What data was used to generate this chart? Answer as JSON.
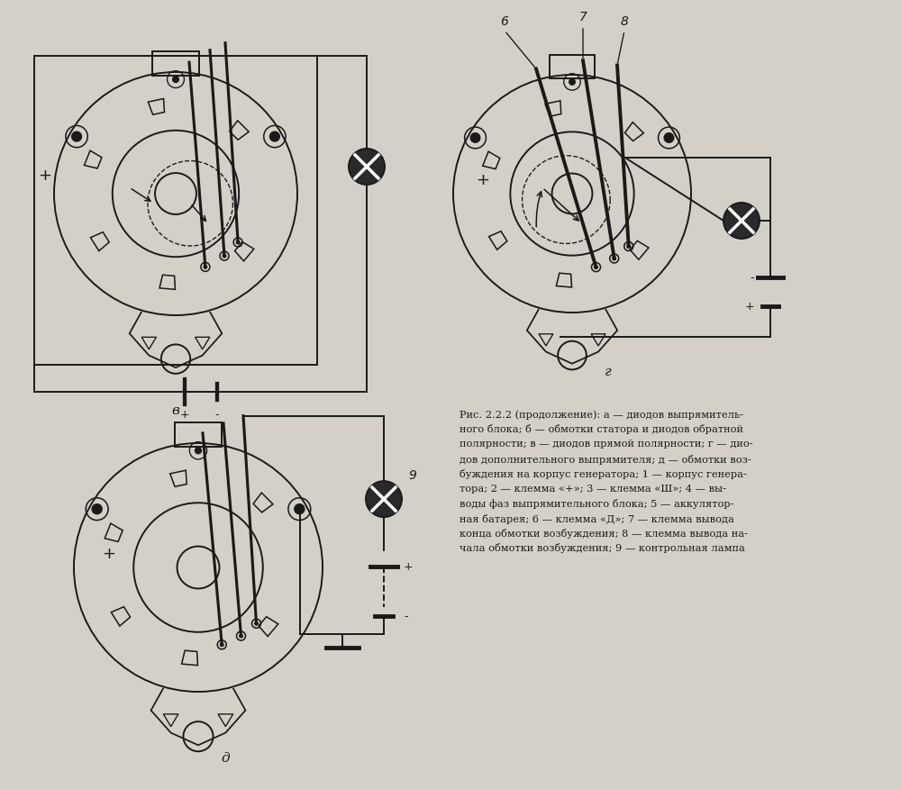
{
  "bg_color": "#d4d0c8",
  "line_color": "#1a1a1a",
  "label_v": "в",
  "label_g": "г",
  "label_d": "д",
  "caption_lines": [
    "Рис. 2.2.2 (продолжение): а — диодов выпрямитель-",
    "ного блока; б — обмотки статора и диодов обратной",
    "полярности; в — диодов прямой полярности; г — дио-",
    "дов дополнительного выпрямителя; д — обмотки воз-",
    "буждения на корпус генератора; 1 — корпус генера-",
    "тора; 2 — клемма «+»; 3 — клемма «Ш»; 4 — вы-",
    "воды фаз выпрямительного блока; 5 — аккулятор-",
    "ная батарея; 6 — клемма «Д»; 7 — клемма вывода",
    "конца обмотки возбуждения; 8 — клемма вывода на-",
    "чала обмотки возбуждения; 9 — контрольная лампа"
  ]
}
